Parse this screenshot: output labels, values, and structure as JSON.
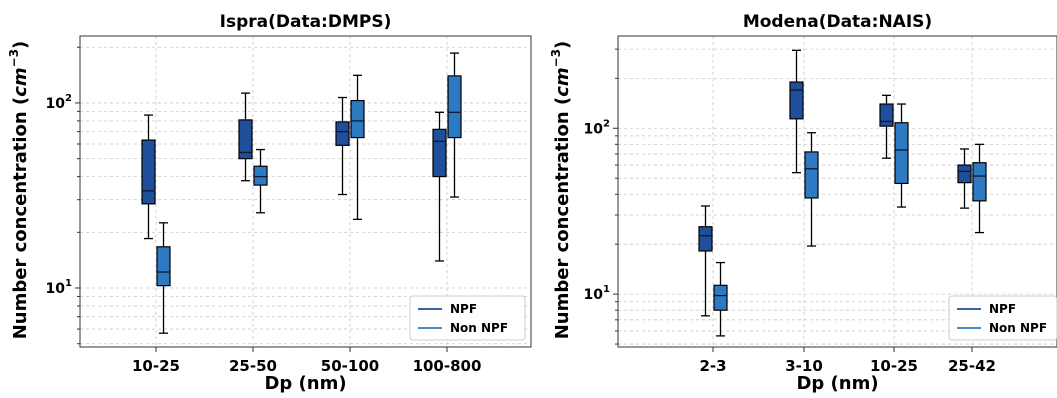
{
  "chart_data": [
    {
      "type": "box",
      "title": "Ispra(Data:DMPS)",
      "xlabel": "Dp (nm)",
      "ylabel": "Number concentration (cm⁻³)",
      "ylabel_main": "Number concentration (",
      "ylabel_unit": "cm",
      "ylabel_exp": "−3",
      "ylabel_close": ")",
      "yscale": "log",
      "ylim": [
        4.8,
        230
      ],
      "ytick_labels": [
        {
          "base": "10",
          "exp": "1",
          "value": 10
        },
        {
          "base": "10",
          "exp": "2",
          "value": 100
        }
      ],
      "grid": true,
      "legend": "lower-right",
      "categories": [
        "10-25",
        "25-50",
        "50-100",
        "100-800"
      ],
      "series": [
        {
          "name": "NPF",
          "color": "#1f4e9a",
          "boxes": [
            {
              "whislo": 18.5,
              "q1": 28.5,
              "med": 33.5,
              "q3": 63,
              "whishi": 86
            },
            {
              "whislo": 38,
              "q1": 50,
              "med": 54,
              "q3": 81,
              "whishi": 113
            },
            {
              "whislo": 32,
              "q1": 59,
              "med": 70,
              "q3": 79,
              "whishi": 107
            },
            {
              "whislo": 14,
              "q1": 40,
              "med": 62,
              "q3": 72,
              "whishi": 89
            }
          ]
        },
        {
          "name": "Non NPF",
          "color": "#2e7ac2",
          "boxes": [
            {
              "whislo": 5.7,
              "q1": 10.3,
              "med": 12.2,
              "q3": 16.7,
              "whishi": 22.5
            },
            {
              "whislo": 25.5,
              "q1": 36,
              "med": 40,
              "q3": 45.5,
              "whishi": 56
            },
            {
              "whislo": 23.5,
              "q1": 65,
              "med": 80,
              "q3": 103,
              "whishi": 141
            },
            {
              "whislo": 31,
              "q1": 65,
              "med": 89,
              "q3": 140,
              "whishi": 186
            }
          ]
        }
      ]
    },
    {
      "type": "box",
      "title": "Modena(Data:NAIS)",
      "xlabel": "Dp (nm)",
      "ylabel": "Number concentration (cm⁻³)",
      "ylabel_main": "Number concentration (",
      "ylabel_unit": "cm",
      "ylabel_exp": "−3",
      "ylabel_close": ")",
      "yscale": "log",
      "ylim": [
        4.8,
        360
      ],
      "ytick_labels": [
        {
          "base": "10",
          "exp": "1",
          "value": 10
        },
        {
          "base": "10",
          "exp": "2",
          "value": 100
        }
      ],
      "grid": true,
      "legend": "lower-right",
      "categories": [
        "2-3",
        "3-10",
        "10-25",
        "25-42"
      ],
      "series": [
        {
          "name": "NPF",
          "color": "#1f4e9a",
          "boxes": [
            {
              "whislo": 7.4,
              "q1": 18.2,
              "med": 22.5,
              "q3": 25.5,
              "whishi": 34
            },
            {
              "whislo": 54,
              "q1": 114,
              "med": 170,
              "q3": 190,
              "whishi": 295
            },
            {
              "whislo": 66,
              "q1": 103,
              "med": 110,
              "q3": 140,
              "whishi": 158
            },
            {
              "whislo": 33,
              "q1": 47,
              "med": 55,
              "q3": 60,
              "whishi": 75
            }
          ]
        },
        {
          "name": "Non NPF",
          "color": "#2e7ac2",
          "boxes": [
            {
              "whislo": 5.6,
              "q1": 8.0,
              "med": 9.8,
              "q3": 11.3,
              "whishi": 15.5
            },
            {
              "whislo": 19.5,
              "q1": 38,
              "med": 57,
              "q3": 72,
              "whishi": 94
            },
            {
              "whislo": 33.5,
              "q1": 46.5,
              "med": 74,
              "q3": 108,
              "whishi": 140
            },
            {
              "whislo": 23.5,
              "q1": 36.5,
              "med": 51.5,
              "q3": 62,
              "whishi": 80
            }
          ]
        }
      ]
    }
  ]
}
